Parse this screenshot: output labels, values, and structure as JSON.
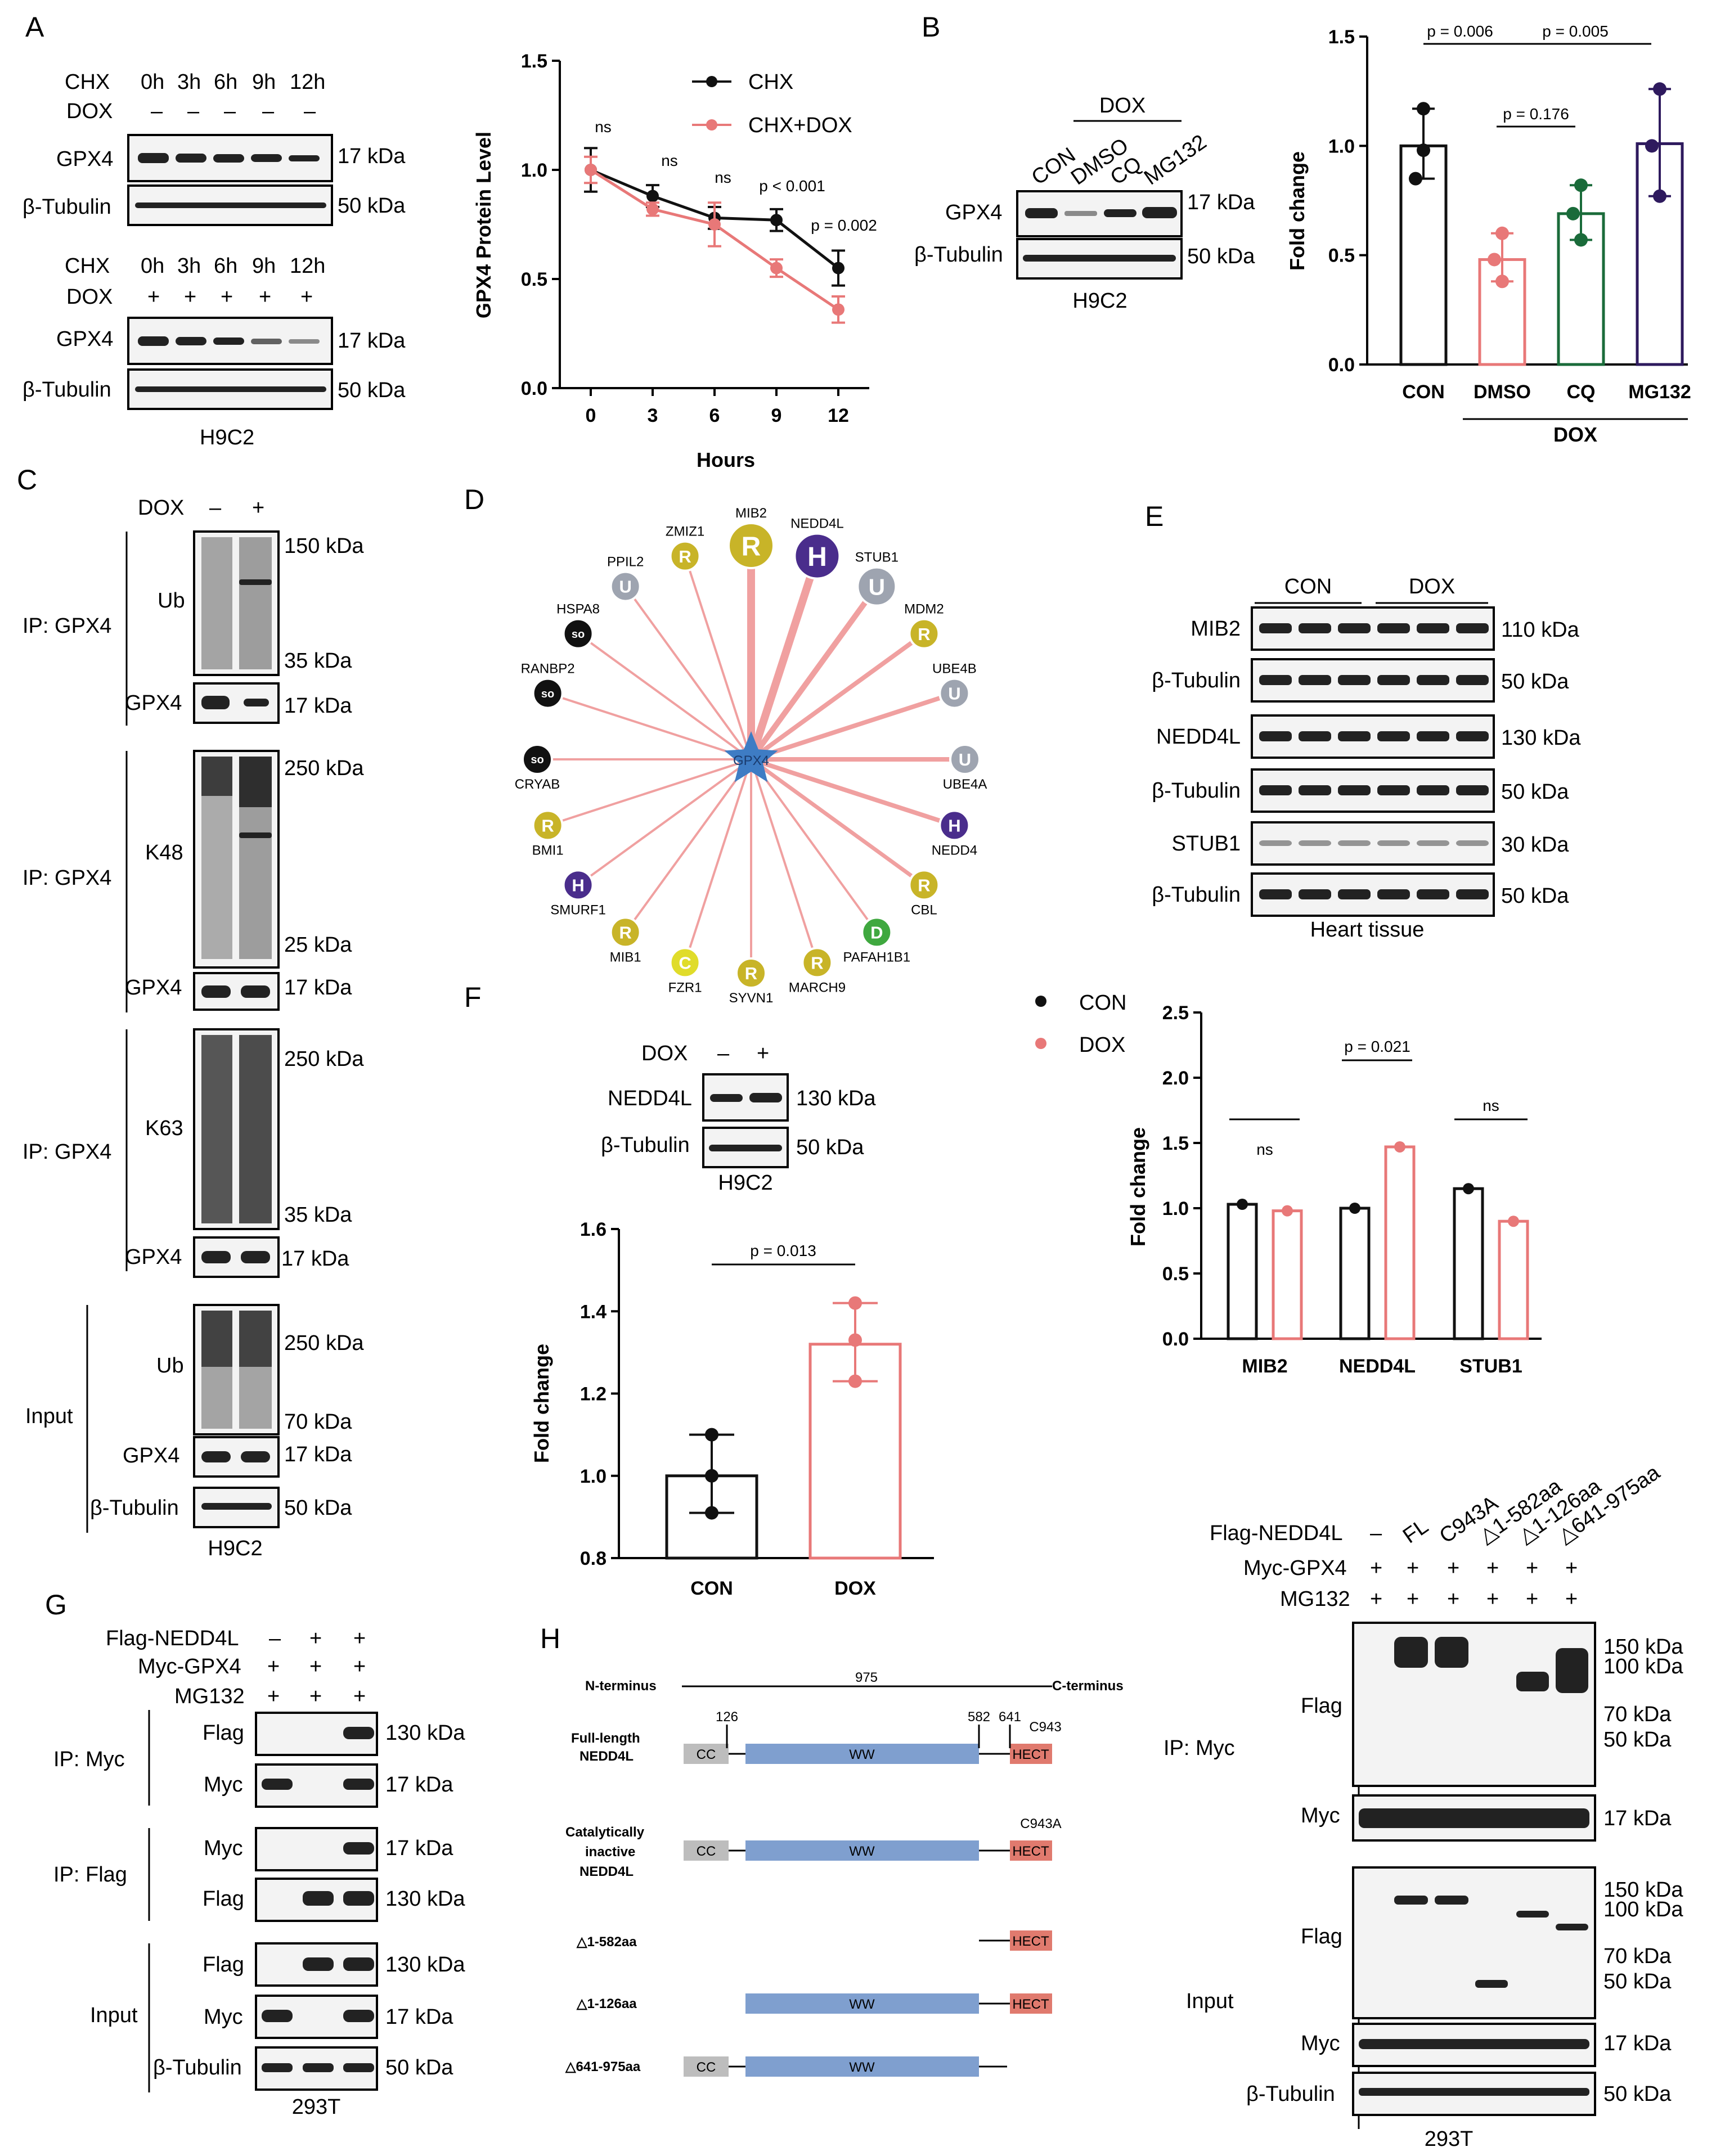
{
  "panels": {
    "A": "A",
    "B": "B",
    "C": "C",
    "D": "D",
    "E": "E",
    "F": "F",
    "G": "G",
    "H": "H"
  },
  "a": {
    "chx_label": "CHX",
    "dox_label": "DOX",
    "timepoints": [
      "0h",
      "3h",
      "6h",
      "9h",
      "12h"
    ],
    "dox_minus": [
      "–",
      "–",
      "–",
      "–",
      "–"
    ],
    "dox_plus": [
      "+",
      "+",
      "+",
      "+",
      "+"
    ],
    "gpx4": "GPX4",
    "tubulin": "β-Tubulin",
    "kda17": "17 kDa",
    "kda50": "50 kDa",
    "cell": "H9C2"
  },
  "chart_data": [
    {
      "type": "line",
      "title": "",
      "xlabel": "Hours",
      "ylabel": "GPX4 Protein Level",
      "x": [
        0,
        3,
        6,
        9,
        12
      ],
      "xlim": [
        -1.5,
        13.5
      ],
      "ylim": [
        0,
        1.5
      ],
      "yticks": [
        "0.0",
        "0.5",
        "1.0",
        "1.5"
      ],
      "xticks": [
        "0",
        "3",
        "6",
        "9",
        "12"
      ],
      "series": [
        {
          "name": "CHX",
          "color": "#111111",
          "values": [
            1.0,
            0.88,
            0.78,
            0.77,
            0.55
          ],
          "errors": [
            0.1,
            0.05,
            0.05,
            0.05,
            0.08
          ]
        },
        {
          "name": "CHX+DOX",
          "color": "#e87878",
          "values": [
            1.0,
            0.82,
            0.75,
            0.55,
            0.36
          ],
          "errors": [
            0.06,
            0.03,
            0.1,
            0.04,
            0.06
          ]
        }
      ],
      "annotations": [
        "ns",
        "ns",
        "ns",
        "p < 0.001",
        "p = 0.002"
      ]
    },
    {
      "type": "bar",
      "title": "",
      "xlabel": "",
      "ylabel": "Fold change",
      "categories": [
        "CON",
        "DMSO",
        "CQ",
        "MG132"
      ],
      "group_label": "DOX",
      "ylim": [
        0,
        1.5
      ],
      "yticks": [
        "0.0",
        "0.5",
        "1.0",
        "1.5"
      ],
      "values": [
        1.0,
        0.48,
        0.69,
        1.01
      ],
      "colors": [
        "#111111",
        "#e87878",
        "#1a6b3a",
        "#2e1a5e"
      ],
      "points": [
        [
          1.17,
          0.85,
          0.98
        ],
        [
          0.6,
          0.48,
          0.38
        ],
        [
          0.82,
          0.69,
          0.57
        ],
        [
          1.26,
          1.0,
          0.77
        ]
      ],
      "comparisons": [
        "p = 0.006",
        "p = 0.005",
        "p = 0.176"
      ]
    },
    {
      "type": "bar",
      "title": "",
      "xlabel": "",
      "ylabel": "Fold change",
      "categories": [
        "CON",
        "DOX"
      ],
      "ylim": [
        0.8,
        1.6
      ],
      "yticks": [
        "0.8",
        "1.0",
        "1.2",
        "1.4",
        "1.6"
      ],
      "values": [
        1.0,
        1.32
      ],
      "colors": [
        "#111111",
        "#e87878"
      ],
      "points": [
        [
          1.1,
          1.0,
          0.91
        ],
        [
          1.42,
          1.33,
          1.23
        ]
      ],
      "comparisons": [
        "p = 0.013"
      ]
    },
    {
      "type": "bar",
      "title": "",
      "xlabel": "",
      "ylabel": "Fold change",
      "categories": [
        "MIB2",
        "NEDD4L",
        "STUB1"
      ],
      "series": [
        {
          "name": "CON",
          "color": "#111111",
          "values": [
            1.03,
            1.0,
            1.15
          ]
        },
        {
          "name": "DOX",
          "color": "#e87878",
          "values": [
            0.98,
            1.47,
            0.9
          ]
        }
      ],
      "ylim": [
        0,
        2.5
      ],
      "yticks": [
        "0.0",
        "0.5",
        "1.0",
        "1.5",
        "2.0",
        "2.5"
      ],
      "comparisons": [
        "ns",
        "p = 0.021",
        "ns"
      ]
    }
  ],
  "b": {
    "dox": "DOX",
    "lanes": [
      "CON",
      "DMSO",
      "CQ",
      "MG132"
    ],
    "gpx4": "GPX4",
    "tubulin": "β-Tubulin",
    "kda17": "17 kDa",
    "kda50": "50 kDa",
    "cell": "H9C2",
    "group": "DOX"
  },
  "c": {
    "dox": "DOX",
    "minus": "–",
    "plus": "+",
    "ip": "IP: GPX4",
    "input": "Input",
    "ub": "Ub",
    "k48": "K48",
    "k63": "K63",
    "gpx4": "GPX4",
    "tubulin": "β-Tubulin",
    "k150": "150 kDa",
    "k35": "35 kDa",
    "k250": "250 kDa",
    "k25": "25 kDa",
    "k70": "70 kDa",
    "k17": "17 kDa",
    "k50": "50 kDa",
    "cell": "H9C2"
  },
  "d": {
    "center": "GPX4",
    "nodes": [
      {
        "label": "MIB2",
        "letter": "R",
        "color": "#c8b428"
      },
      {
        "label": "NEDD4L",
        "letter": "H",
        "color": "#4a2d8c"
      },
      {
        "label": "STUB1",
        "letter": "U",
        "color": "#9ea4b0"
      },
      {
        "label": "MDM2",
        "letter": "R",
        "color": "#c8b428"
      },
      {
        "label": "UBE4B",
        "letter": "U",
        "color": "#9ea4b0"
      },
      {
        "label": "UBE4A",
        "letter": "U",
        "color": "#9ea4b0"
      },
      {
        "label": "NEDD4",
        "letter": "H",
        "color": "#4a2d8c"
      },
      {
        "label": "CBL",
        "letter": "R",
        "color": "#c8b428"
      },
      {
        "label": "PAFAH1B1",
        "letter": "D",
        "color": "#3fa83f"
      },
      {
        "label": "MARCH9",
        "letter": "R",
        "color": "#c8b428"
      },
      {
        "label": "SYVN1",
        "letter": "R",
        "color": "#c8b428"
      },
      {
        "label": "FZR1",
        "letter": "C",
        "color": "#e0dc2a"
      },
      {
        "label": "MIB1",
        "letter": "R",
        "color": "#c8b428"
      },
      {
        "label": "SMURF1",
        "letter": "H",
        "color": "#4a2d8c"
      },
      {
        "label": "BMI1",
        "letter": "R",
        "color": "#c8b428"
      },
      {
        "label": "CRYAB",
        "letter": "so",
        "color": "#111111"
      },
      {
        "label": "RANBP2",
        "letter": "so",
        "color": "#111111"
      },
      {
        "label": "HSPA8",
        "letter": "so",
        "color": "#111111"
      },
      {
        "label": "PPIL2",
        "letter": "U",
        "color": "#9ea4b0"
      },
      {
        "label": "ZMIZ1",
        "letter": "R",
        "color": "#c8b428"
      }
    ]
  },
  "e": {
    "con": "CON",
    "dox": "DOX",
    "mib2": "MIB2",
    "nedd4l": "NEDD4L",
    "stub1": "STUB1",
    "tubulin": "β-Tubulin",
    "k110": "110 kDa",
    "k50": "50 kDa",
    "k130": "130 kDa",
    "k30": "30 kDa",
    "tissue": "Heart tissue"
  },
  "f": {
    "dox": "DOX",
    "minus": "–",
    "plus": "+",
    "nedd4l": "NEDD4L",
    "tubulin": "β-Tubulin",
    "k130": "130 kDa",
    "k50": "50 kDa",
    "cell": "H9C2",
    "legend_con": "CON",
    "legend_dox": "DOX"
  },
  "g": {
    "rows": [
      "Flag-NEDD4L",
      "Myc-GPX4",
      "MG132"
    ],
    "signs": [
      [
        "–",
        "+",
        "+"
      ],
      [
        "+",
        "+",
        "+"
      ],
      [
        "+",
        "+",
        "+"
      ]
    ],
    "ip_myc": "IP:  Myc",
    "ip_flag": "IP:  Flag",
    "input": "Input",
    "flag": "Flag",
    "myc": "Myc",
    "tubulin": "β-Tubulin",
    "k130": "130 kDa",
    "k17": "17 kDa",
    "k50": "50 kDa",
    "cell": "293T"
  },
  "h": {
    "nterm": "N-terminus",
    "cterm": "C-terminus",
    "len": "975",
    "constructs": [
      "Full-length NEDD4L",
      "Catalytically inactive NEDD4L",
      "△1-582aa",
      "△1-126aa",
      "△641-975aa"
    ],
    "full_a": "Full-length",
    "full_b": "NEDD4L",
    "cat_a": "Catalytically",
    "cat_b": "inactive",
    "cat_c": "NEDD4L",
    "cc": "CC",
    "ww": "WW",
    "hect": "HECT",
    "p126": "126",
    "p582": "582",
    "p641": "641",
    "c943": "C943",
    "c943a": "C943A"
  },
  "i": {
    "rows": [
      "Flag-NEDD4L",
      "Myc-GPX4",
      "MG132"
    ],
    "lanes": [
      "–",
      "FL",
      "C943A",
      "△1-582aa",
      "△1-126aa",
      "△641-975aa"
    ],
    "ip_myc": "IP: Myc",
    "input": "Input",
    "flag": "Flag",
    "myc": "Myc",
    "tubulin": "β-Tubulin",
    "k150": "150 kDa",
    "k100": "100 kDa",
    "k70": "70 kDa",
    "k50": "50 kDa",
    "k17": "17 kDa",
    "cell": "293T"
  }
}
